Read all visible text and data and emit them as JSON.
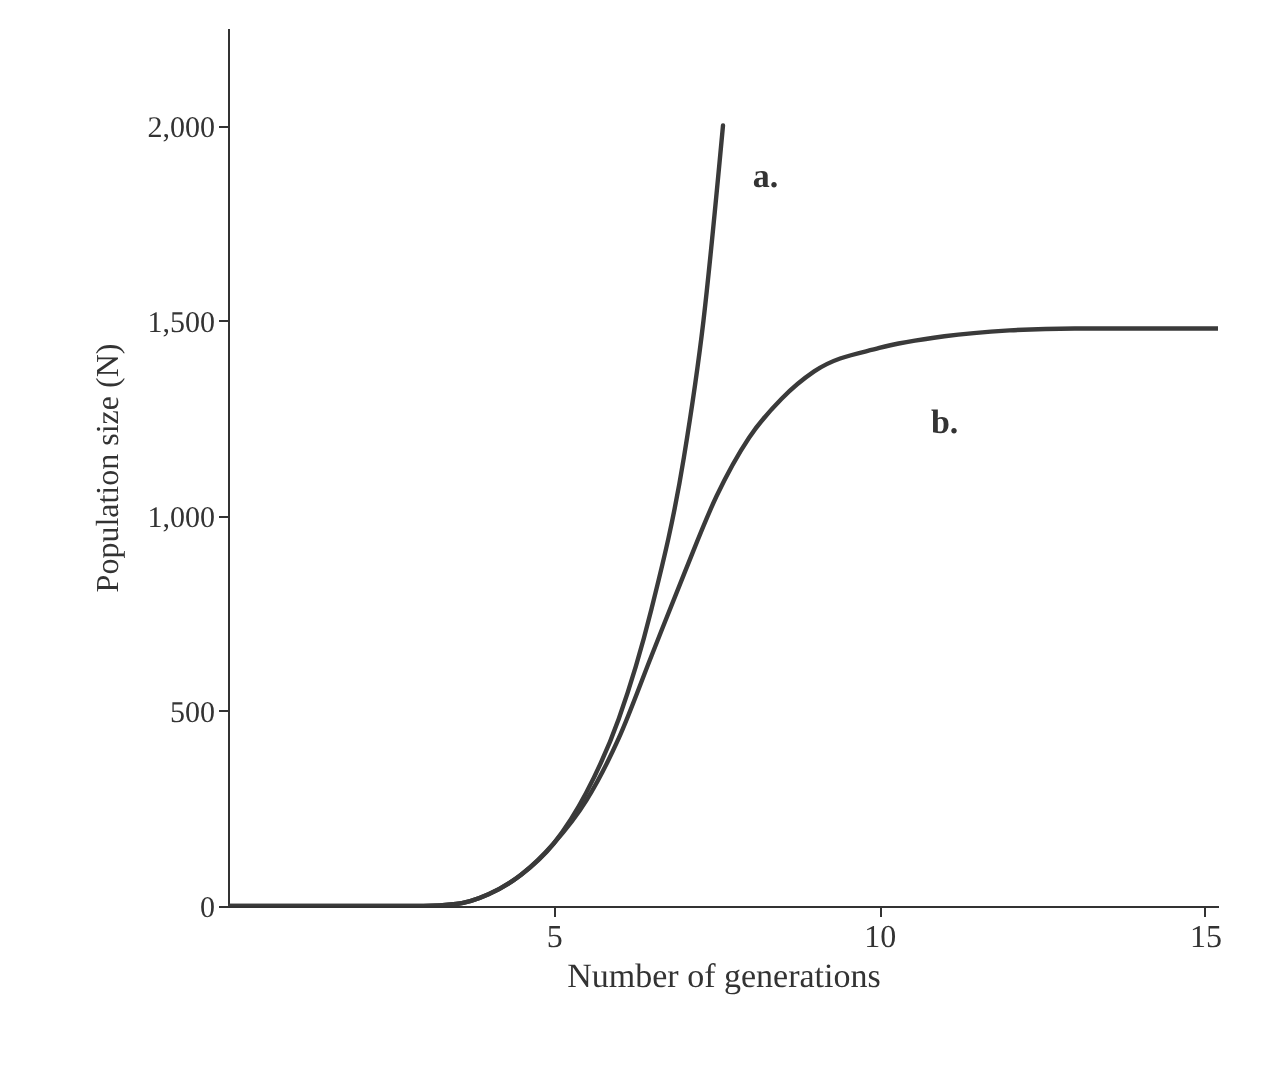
{
  "chart_data": {
    "type": "line",
    "xlabel": "Number of generations",
    "ylabel": "Population size (N)",
    "xlim": [
      0,
      15.2
    ],
    "xticks": [
      5,
      10,
      15
    ],
    "ylim": [
      0,
      2250
    ],
    "yticks": [
      0,
      500,
      {
        "value": 1000,
        "label": "1,000"
      },
      {
        "value": 1500,
        "label": "1,500"
      },
      {
        "value": 2000,
        "label": "2,000"
      }
    ],
    "grid": false,
    "legend": false,
    "marker": "none",
    "line_style": "solid",
    "annotations": [
      "a.",
      "b."
    ],
    "series": [
      {
        "color": "#3a3a3a",
        "x": [
          0,
          1,
          2,
          3,
          3.5,
          4,
          4.5,
          5,
          5.5,
          6,
          6.5,
          7,
          7.3,
          7.6
        ],
        "values": [
          0,
          0,
          0,
          0,
          5,
          30,
          80,
          160,
          290,
          480,
          760,
          1150,
          1500,
          2000
        ]
      },
      {
        "color": "#3a3a3a",
        "x": [
          0,
          1,
          2,
          3,
          3.5,
          4,
          4.5,
          5,
          5.5,
          6,
          6.5,
          7,
          7.5,
          8,
          8.5,
          9,
          10,
          11,
          12,
          13,
          14,
          15.2
        ],
        "values": [
          0,
          0,
          0,
          0,
          5,
          30,
          80,
          160,
          270,
          430,
          640,
          850,
          1050,
          1200,
          1300,
          1370,
          1430,
          1460,
          1475,
          1480,
          1480,
          1480
        ]
      }
    ]
  }
}
